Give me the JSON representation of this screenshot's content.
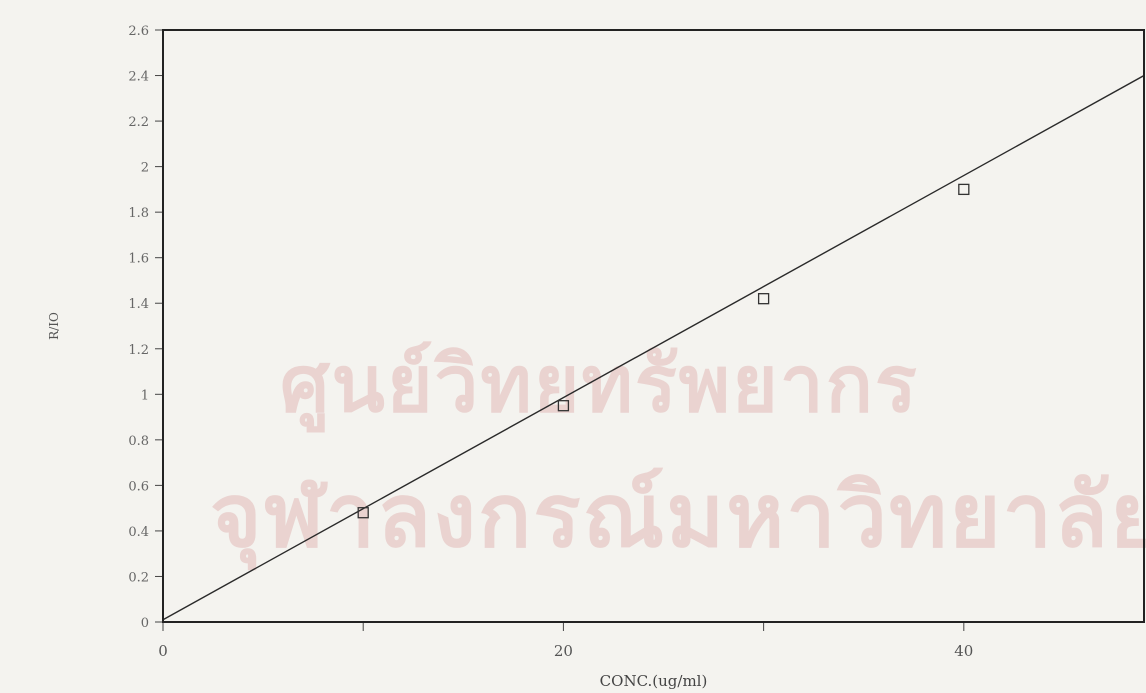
{
  "watermark": {
    "line1": "ศูนย์วิทยทรัพยากร",
    "line2": "จุฬาลงกรณ์มหาวิทยาลัย"
  },
  "chart_data": {
    "type": "scatter",
    "title": "",
    "xlabel": "CONC.(ug/ml)",
    "ylabel": "R/IO",
    "xlim": [
      0,
      49
    ],
    "ylim": [
      0,
      2.6
    ],
    "x_ticks": [
      0,
      20,
      40
    ],
    "x_tick_labels": [
      "0",
      "20",
      "40"
    ],
    "x_minor_ticks": [
      10,
      30
    ],
    "y_ticks": [
      0,
      0.2,
      0.4,
      0.6,
      0.8,
      1,
      1.2,
      1.4,
      1.6,
      1.8,
      2,
      2.2,
      2.4,
      2.6
    ],
    "y_tick_labels": [
      "0",
      "0.2",
      "0.4",
      "0.6",
      "0.8",
      "1",
      "1.2",
      "1.4",
      "1.6",
      "1.8",
      "2",
      "2.2",
      "2.4",
      "2.6"
    ],
    "grid": false,
    "legend": "none",
    "series": [
      {
        "marker": "square",
        "points": [
          [
            10,
            0.48
          ],
          [
            20,
            0.95
          ],
          [
            30,
            1.42
          ],
          [
            40,
            1.9
          ]
        ]
      }
    ],
    "fit_line": {
      "x": [
        0,
        49
      ],
      "y": [
        0.01,
        2.4
      ]
    }
  }
}
